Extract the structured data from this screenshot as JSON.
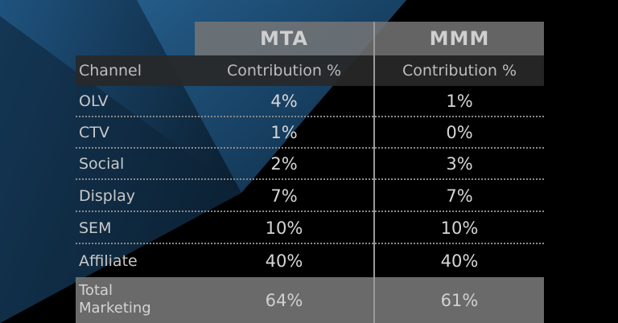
{
  "table": {
    "group_headers": {
      "mta": "MTA",
      "mmm": "MMM"
    },
    "column_headers": {
      "channel": "Channel",
      "mta": "Contribution %",
      "mmm": "Contribution %"
    },
    "rows": [
      {
        "channel": "OLV",
        "mta": "4%",
        "mmm": "1%"
      },
      {
        "channel": "CTV",
        "mta": "1%",
        "mmm": "0%"
      },
      {
        "channel": "Social",
        "mta": "2%",
        "mmm": "3%"
      },
      {
        "channel": "Display",
        "mta": "7%",
        "mmm": "7%"
      },
      {
        "channel": "SEM",
        "mta": "10%",
        "mmm": "10%"
      },
      {
        "channel": "Affiliate",
        "mta": "40%",
        "mmm": "40%"
      }
    ],
    "total": {
      "channel": "Total Marketing",
      "mta": "64%",
      "mmm": "61%"
    }
  },
  "colors": {
    "background": "#000000",
    "accent_blue": "#1f4f78",
    "header_gray": "#767676",
    "total_gray": "#767676"
  }
}
